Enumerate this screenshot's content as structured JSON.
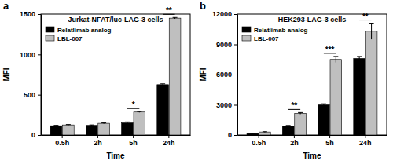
{
  "chart_data": [
    {
      "type": "bar",
      "title": "Jurkat-NFAT/luc-LAG-3 cells",
      "annotations": [
        "a"
      ],
      "x_label": "Time",
      "y_label": "MFI",
      "categories": [
        "0.5h",
        "2h",
        "5h",
        "24h"
      ],
      "series": [
        {
          "name": "Relatlimab analog",
          "color": "#000000",
          "values": [
            115,
            120,
            150,
            625
          ],
          "errors": [
            5,
            5,
            12,
            10
          ]
        },
        {
          "name": "LBL-007",
          "color": "#bfbfbf",
          "values": [
            125,
            145,
            285,
            1450
          ],
          "errors": [
            5,
            5,
            5,
            8
          ]
        }
      ],
      "significance": [
        null,
        null,
        "*",
        "**"
      ],
      "ylim": [
        0,
        1500
      ],
      "yticks": [
        0,
        500,
        1000,
        1500
      ],
      "legend": "upper left"
    },
    {
      "type": "bar",
      "title": "HEK293-LAG-3 cells",
      "annotations": [
        "b"
      ],
      "x_label": "Time",
      "y_label": "MFI",
      "categories": [
        "0.5h",
        "2h",
        "5h",
        "24h"
      ],
      "series": [
        {
          "name": "Relatlimab analog",
          "color": "#000000",
          "values": [
            150,
            900,
            3000,
            7600
          ],
          "errors": [
            20,
            50,
            100,
            200
          ]
        },
        {
          "name": "LBL-007",
          "color": "#bfbfbf",
          "values": [
            300,
            2150,
            7500,
            10300
          ],
          "errors": [
            30,
            80,
            300,
            800
          ]
        }
      ],
      "significance": [
        null,
        "**",
        "***",
        "**"
      ],
      "ylim": [
        0,
        12000
      ],
      "yticks": [
        0,
        3000,
        6000,
        9000,
        12000
      ],
      "legend": "upper left"
    }
  ]
}
